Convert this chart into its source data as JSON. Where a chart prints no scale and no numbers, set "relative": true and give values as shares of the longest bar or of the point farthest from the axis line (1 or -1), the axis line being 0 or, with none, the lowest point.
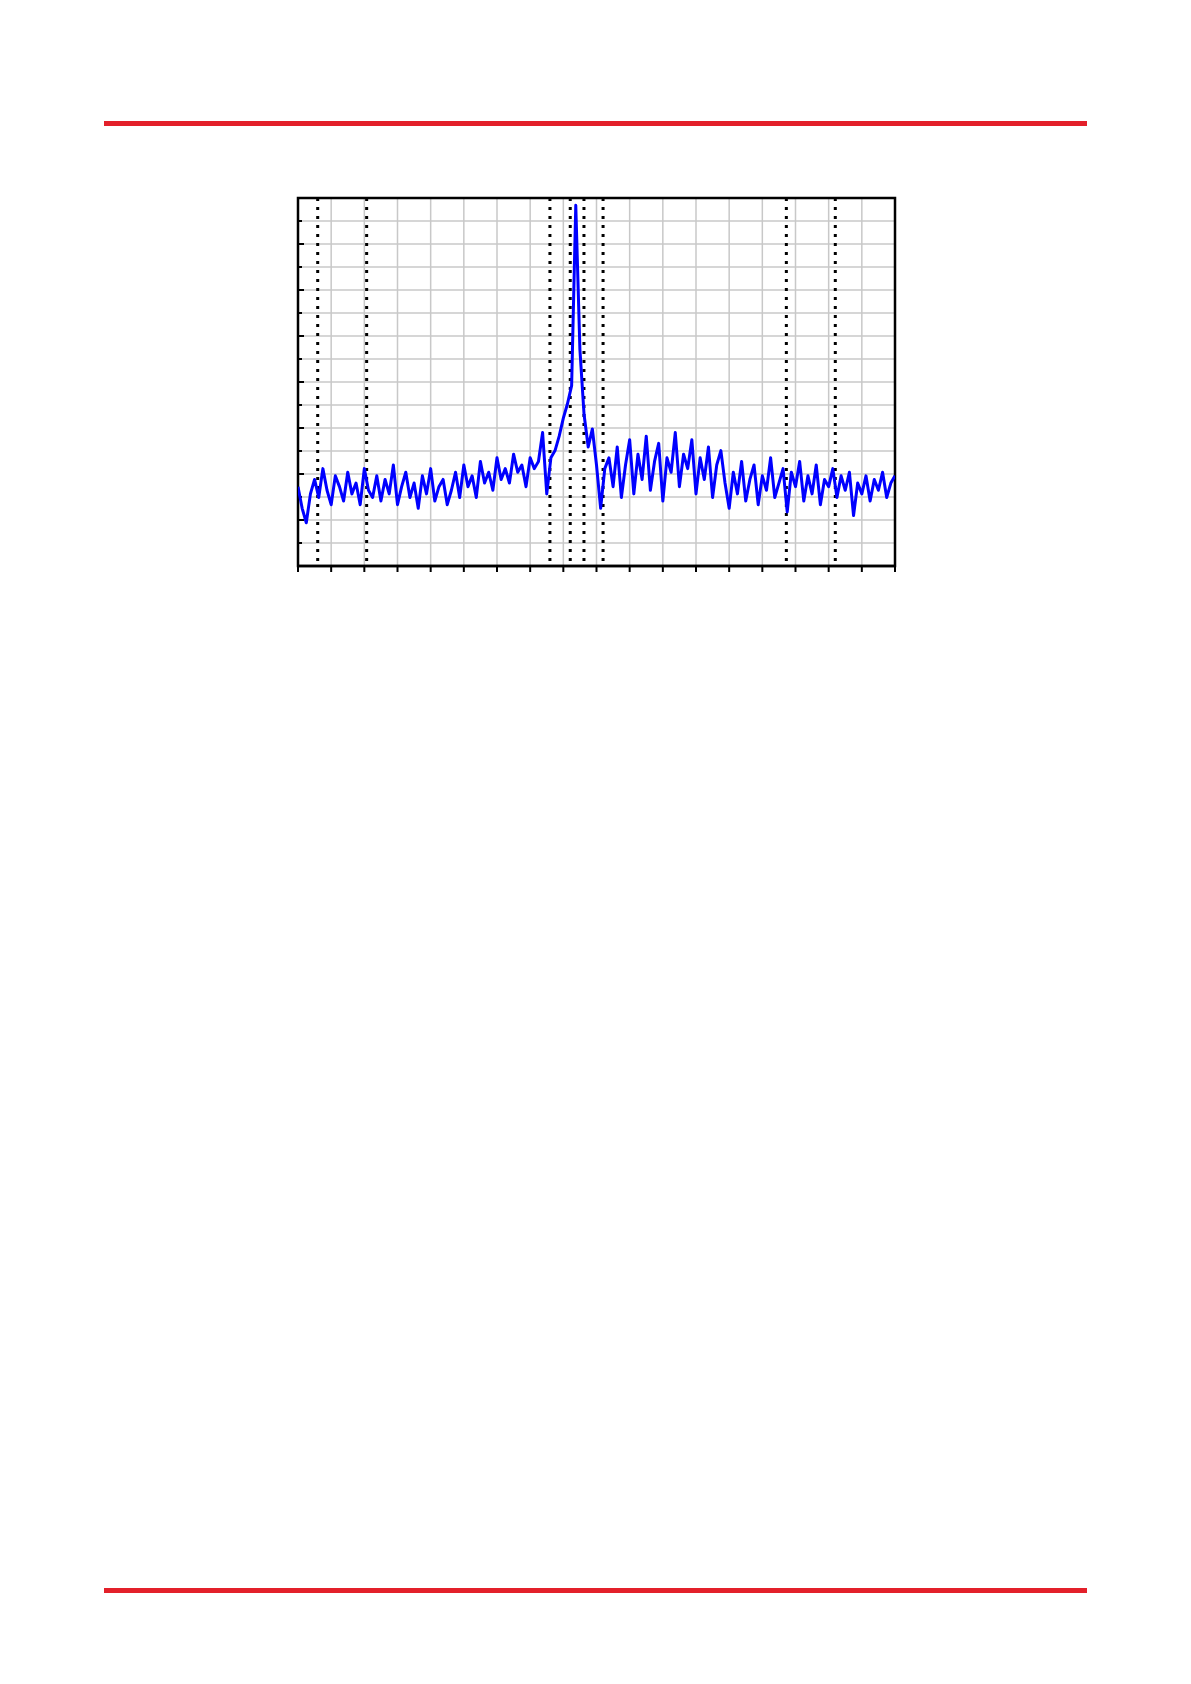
{
  "chart_data": {
    "type": "line",
    "relative": true,
    "grid": true,
    "legend": false,
    "marker": "none",
    "line_style": "solid",
    "categories": [
      null,
      null,
      null,
      null,
      null,
      null,
      null,
      null,
      null,
      null,
      null,
      null,
      null,
      null,
      null,
      null,
      null,
      null,
      null,
      null,
      null,
      null,
      null,
      null,
      null,
      null,
      null,
      null,
      null,
      null,
      null,
      null,
      null,
      null,
      null,
      null,
      null,
      null,
      null,
      null,
      null,
      null,
      null,
      null,
      null,
      null,
      null,
      null,
      null,
      null,
      null,
      null,
      null,
      null,
      null,
      null,
      null,
      null,
      null,
      null,
      null,
      null,
      null,
      null,
      null,
      null,
      null,
      null,
      null,
      null,
      null,
      null,
      null,
      null,
      null,
      null,
      null,
      null,
      null,
      null,
      null,
      null,
      null,
      null,
      null,
      null,
      null,
      null,
      null,
      null,
      null,
      null,
      null,
      null,
      null,
      null,
      null,
      null,
      null,
      null,
      null,
      null,
      null,
      null,
      null,
      null,
      null,
      null,
      null,
      null,
      null,
      null,
      null,
      null,
      null,
      null,
      null,
      null,
      null,
      null,
      null,
      null,
      null,
      null,
      null,
      null,
      null,
      null,
      null,
      null,
      null,
      null,
      null,
      null,
      null,
      null,
      null,
      null,
      null,
      null,
      null,
      null,
      null,
      null,
      null
    ],
    "series": [
      {
        "color": "#0000ff",
        "values": [
          0.22,
          0.16,
          0.12,
          0.2,
          0.24,
          0.19,
          0.27,
          0.21,
          0.17,
          0.25,
          0.22,
          0.18,
          0.26,
          0.2,
          0.23,
          0.17,
          0.27,
          0.21,
          0.19,
          0.25,
          0.18,
          0.24,
          0.2,
          0.28,
          0.17,
          0.22,
          0.26,
          0.19,
          0.23,
          0.16,
          0.25,
          0.2,
          0.27,
          0.18,
          0.22,
          0.24,
          0.17,
          0.21,
          0.26,
          0.19,
          0.28,
          0.22,
          0.25,
          0.19,
          0.29,
          0.23,
          0.26,
          0.21,
          0.3,
          0.24,
          0.27,
          0.23,
          0.31,
          0.26,
          0.28,
          0.22,
          0.3,
          0.27,
          0.29,
          0.37,
          0.2,
          0.3,
          0.32,
          0.36,
          0.41,
          0.45,
          0.5,
          1,
          0.6,
          0.42,
          0.33,
          0.38,
          0.28,
          0.16,
          0.27,
          0.3,
          0.22,
          0.33,
          0.19,
          0.28,
          0.35,
          0.2,
          0.31,
          0.24,
          0.36,
          0.21,
          0.29,
          0.34,
          0.18,
          0.3,
          0.26,
          0.37,
          0.22,
          0.31,
          0.27,
          0.35,
          0.2,
          0.3,
          0.24,
          0.33,
          0.19,
          0.28,
          0.32,
          0.23,
          0.16,
          0.26,
          0.2,
          0.29,
          0.18,
          0.24,
          0.28,
          0.17,
          0.25,
          0.21,
          0.3,
          0.19,
          0.23,
          0.27,
          0.15,
          0.26,
          0.22,
          0.29,
          0.18,
          0.25,
          0.2,
          0.28,
          0.17,
          0.24,
          0.22,
          0.27,
          0.19,
          0.25,
          0.21,
          0.26,
          0.14,
          0.23,
          0.2,
          0.25,
          0.18,
          0.24,
          0.21,
          0.26,
          0.19,
          0.23,
          0.25
        ]
      }
    ]
  }
}
